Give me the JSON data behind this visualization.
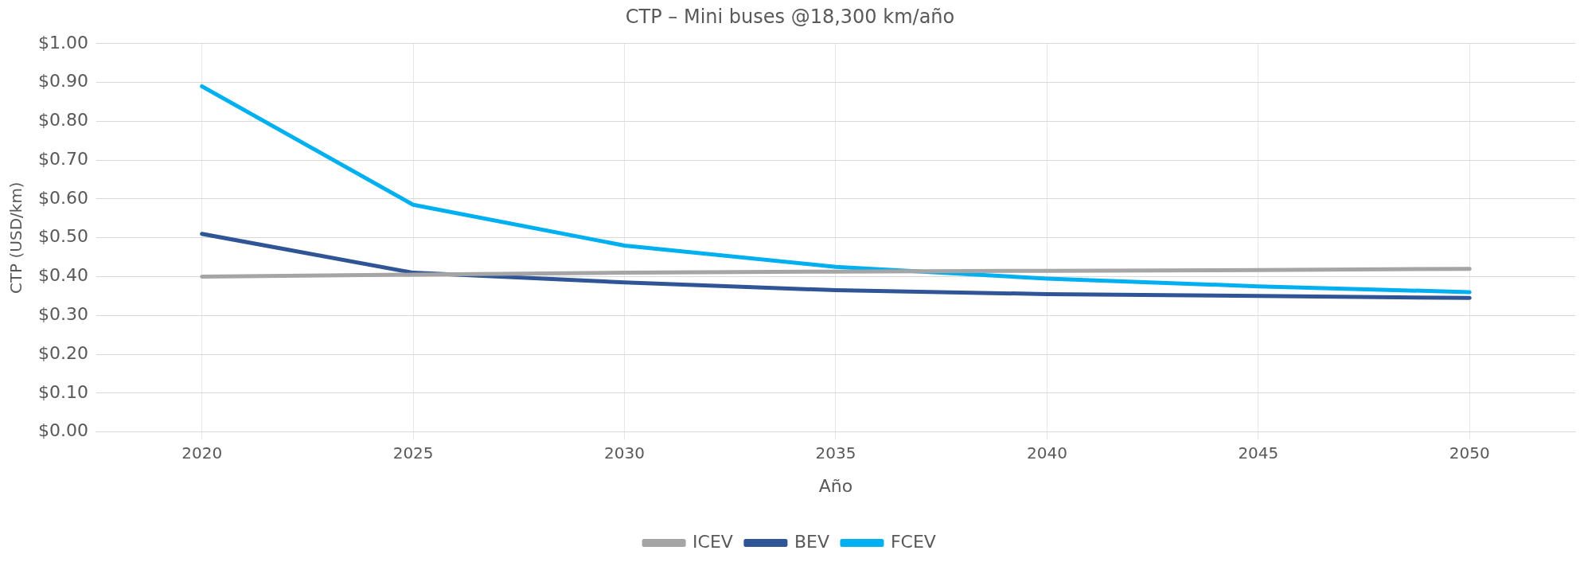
{
  "chart_data": {
    "type": "line",
    "title": "CTP – Mini buses @18,300 km/año",
    "xlabel": "Año",
    "ylabel": "CTP (USD/km)",
    "categories": [
      "2020",
      "2025",
      "2030",
      "2035",
      "2040",
      "2045",
      "2050"
    ],
    "series": [
      {
        "name": "ICEV",
        "color": "#a5a5a5",
        "values": [
          0.4,
          0.405,
          0.41,
          0.413,
          0.415,
          0.417,
          0.42
        ]
      },
      {
        "name": "BEV",
        "color": "#2f5597",
        "values": [
          0.51,
          0.41,
          0.385,
          0.365,
          0.355,
          0.35,
          0.345
        ]
      },
      {
        "name": "FCEV",
        "color": "#00b0f0",
        "values": [
          0.89,
          0.585,
          0.48,
          0.425,
          0.395,
          0.375,
          0.36
        ]
      }
    ],
    "ylim": [
      0,
      1
    ],
    "yticks": [
      {
        "value": 0,
        "label": "$0.00"
      },
      {
        "value": 0.1,
        "label": "$0.10"
      },
      {
        "value": 0.2,
        "label": "$0.20"
      },
      {
        "value": 0.3,
        "label": "$0.30"
      },
      {
        "value": 0.4,
        "label": "$0.40"
      },
      {
        "value": 0.5,
        "label": "$0.50"
      },
      {
        "value": 0.6,
        "label": "$0.60"
      },
      {
        "value": 0.7,
        "label": "$0.70"
      },
      {
        "value": 0.8,
        "label": "$0.80"
      },
      {
        "value": 0.9,
        "label": "$0.90"
      },
      {
        "value": 1,
        "label": "$1.00"
      }
    ],
    "grid": true,
    "legend": "bottom",
    "marker": "none",
    "line_style": "solid"
  }
}
